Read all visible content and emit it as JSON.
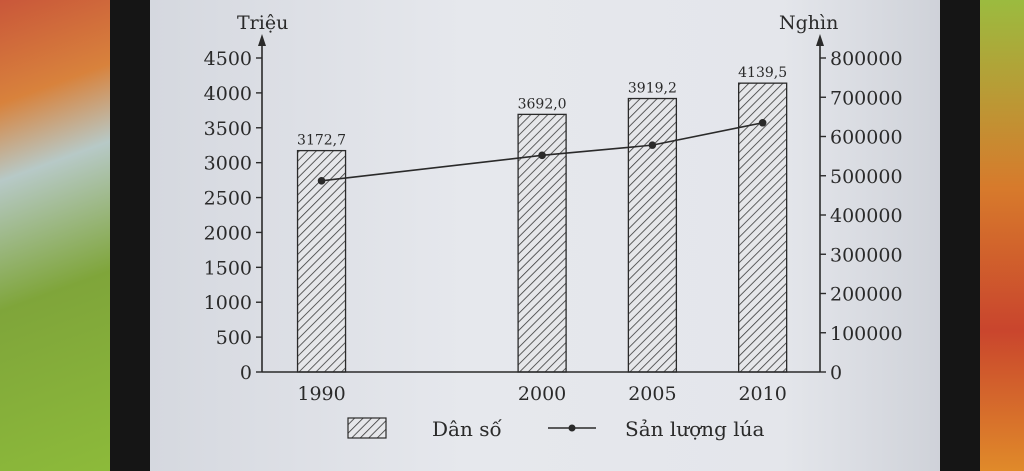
{
  "chart_data": {
    "type": "bar",
    "categories": [
      "1990",
      "2000",
      "2005",
      "2010"
    ],
    "x": [
      1990,
      2000,
      2005,
      2010
    ],
    "series": [
      {
        "name": "Dân số",
        "type": "bar",
        "axis": "left",
        "values": [
          3172.7,
          3692.0,
          3919.2,
          4139.5
        ],
        "labels": [
          "3172,7",
          "3692,0",
          "3919,2",
          "4139,5"
        ]
      },
      {
        "name": "Sản lượng lúa",
        "type": "line",
        "axis": "right",
        "values": [
          487000,
          552000,
          578000,
          635000
        ]
      }
    ],
    "ylabel_left": "Triệu",
    "ylabel_right": "Nghìn",
    "ylim_left": [
      0,
      4500
    ],
    "yticks_left": [
      "0",
      "500",
      "1000",
      "1500",
      "2000",
      "2500",
      "3000",
      "3500",
      "4000",
      "4500"
    ],
    "ylim_right": [
      0,
      800000
    ],
    "yticks_right": [
      "0",
      "100000",
      "200000",
      "300000",
      "400000",
      "500000",
      "600000",
      "700000",
      "800000"
    ],
    "legend": {
      "position": "bottom",
      "items": [
        {
          "label": "Dân số",
          "marker": "hatched-box"
        },
        {
          "label": "Sản lượng lúa",
          "marker": "line-dot"
        }
      ]
    },
    "grid": false
  }
}
